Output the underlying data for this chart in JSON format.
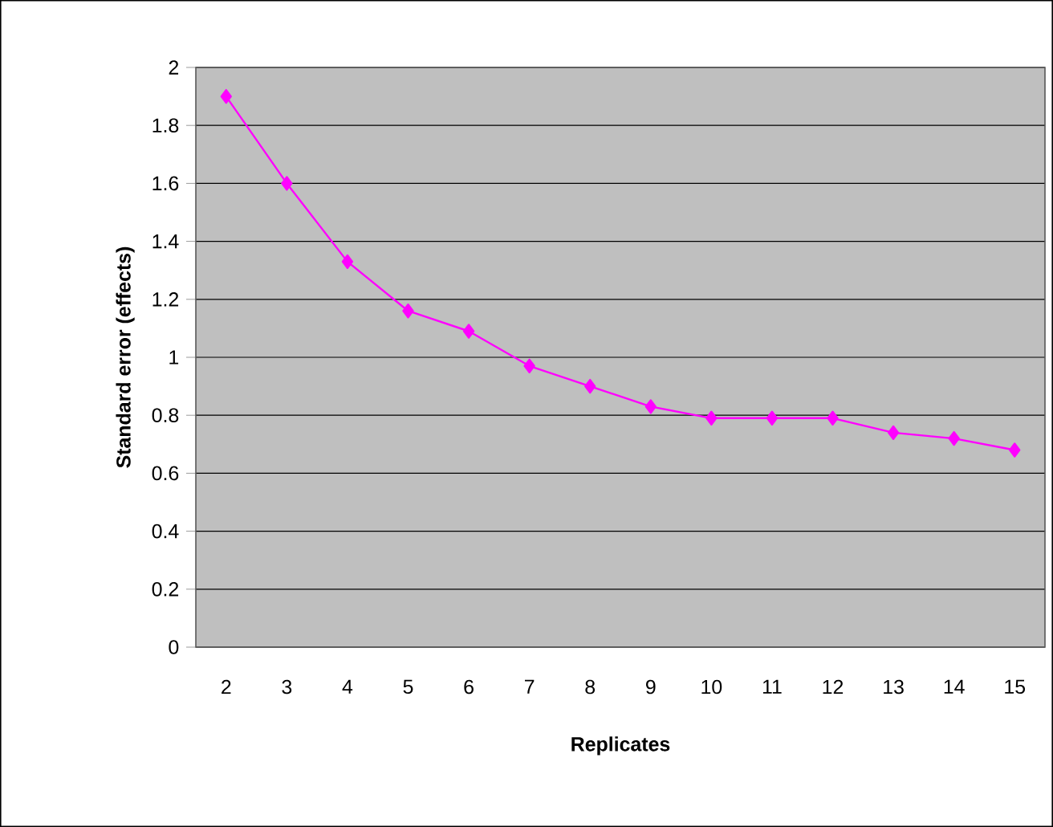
{
  "chart_data": {
    "type": "line",
    "xlabel": "Replicates",
    "ylabel": "Standard error (effects)",
    "categories": [
      "2",
      "3",
      "4",
      "5",
      "6",
      "7",
      "8",
      "9",
      "10",
      "11",
      "12",
      "13",
      "14",
      "15"
    ],
    "series": [
      {
        "color": "#ff00ff",
        "values": [
          1.9,
          1.6,
          1.33,
          1.16,
          1.09,
          0.97,
          0.9,
          0.83,
          0.79,
          0.79,
          0.79,
          0.74,
          0.72,
          0.68
        ]
      }
    ],
    "ylim": [
      0,
      2
    ],
    "yticks": [
      0,
      0.2,
      0.4,
      0.6,
      0.8,
      1,
      1.2,
      1.4,
      1.6,
      1.8,
      2
    ],
    "grid": "y",
    "marker": "diamond",
    "line_style": "solid"
  }
}
